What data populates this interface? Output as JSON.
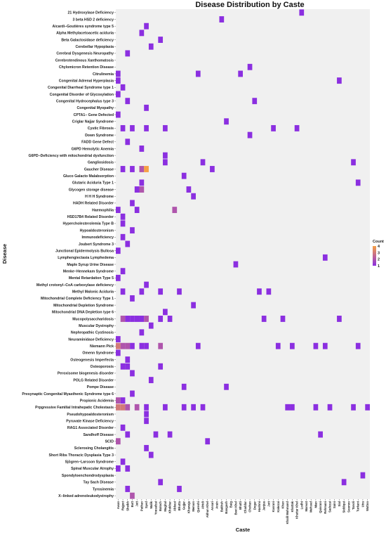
{
  "chart_data": {
    "type": "heatmap",
    "title": "Disease Distribution by Caste",
    "xlabel": "Caste",
    "ylabel": "Disease",
    "legend": {
      "title": "Count",
      "ticks": [
        1,
        2,
        3,
        4
      ],
      "position": "right",
      "low_color": "#8b2fe0",
      "high_color": "#f6a045"
    },
    "panel_color": "#f0f0f0",
    "grid": false,
    "diseases": [
      "21 Hydroxylase Deficiency",
      "3 beta HSD 2 deficiency",
      "Aicardi−Goutières syndrome type 5",
      "Alpha Methylacetoacetic aciduria",
      "Beta Galactosidase deficiency",
      "Cerebellar Hypoplasia",
      "Cerebral Dysgenesis Neuropathy",
      "Cerebrotendinous Xanthomatosis",
      "Chylomicron Retention Disease",
      "Citrulinemia",
      "Congenital Adrenal Hyperplasia",
      "Congenital Diarrheal Syndrome type 1",
      "Congenital Disorder of Glycosylation",
      "Congenital Hydrocephalus type 3",
      "Congenital Myopathy",
      "CPTA1− Gene Defected",
      "Criglar Najjar Syndrome",
      "Cystic Fibrosis",
      "Down Syndrome",
      "FADD Gene Defect",
      "G6PD Hemolytic Anemia",
      "G6PD−Deficiency with mitochondrial dysfunction",
      "Gangliosidosis",
      "Gaucher Disease",
      "Gluco Galacto Malabsorption",
      "Glutaric Aciduria Type 1",
      "Glycogen storage disease",
      "H H H Syndrome",
      "HADH Related Disorder",
      "Haemophilia",
      "HSD17B4 Related Disorder",
      "Hypercholesterolemia Type B",
      "Hypoaldosteronism",
      "Immunodeficiency",
      "Joubert Syndrome 3",
      "Junctional Epidermolysis Bullosa",
      "Lymphengiectasia Lymphedema",
      "Maple Syrup Urine Disease",
      "Menke−Hennekam Syndrome",
      "Mental Retardation Type 5",
      "Methyl crotonyl−CoA carboxylase deficiency",
      "Methyl Malonic Aciduria",
      "Mitochondrial Complete Deficiency Type 1",
      "Mitochondrial Depletion Syndrome",
      "Mitochondrial DNA Depletion type 6",
      "Mucopolysaccharidosis",
      "Muscular Dystrophy",
      "Nephropathic Cystinosis",
      "Neuraminidase Deficiency",
      "Niemann Pick",
      "Omenn Syndrome",
      "Osteogenesis Imperfecta",
      "Osteoporosis",
      "Peroxisome biogenesis disorder",
      "POLG Related Disorder",
      "Pompe Disease",
      "Presynaptic Congenital Myasthenic Syndrome type 6",
      "Propionic Acidemia",
      "Prpgressive Familial Intrahepatic Cholestasis",
      "Pseudohypoaldosteronism",
      "Pyruvate Kinase Deficiency",
      "RAG1 Associated Disorder",
      "Sandhoff Disease",
      "SCID",
      "Sclerosing Cholangitis",
      "Short Ribs Thoracic Dysplasia Type 3",
      "Sjögren−Larsson Syndrome",
      "Spinal Muscular Atrophy",
      "Spondyloenchondrodysplasia",
      "Tay Sach Disease",
      "Tyrosinemia",
      "X−linked adrenoleukodystrophy"
    ],
    "castes": [
      "Awan",
      "Rajput",
      "Sheikh",
      "Butt",
      "Jatt",
      "Pathan",
      "Syed",
      "Malik",
      "Yousafzai",
      "Baloch",
      "Mughal",
      "Khokhar",
      "Abbasi",
      "Bhutta",
      "Gujjar",
      "Khawaja",
      "Memon",
      "Qureshi",
      "Afridi",
      "Akhun Khel",
      "Ansari",
      "Arain",
      "Bakhsh",
      "Bangash",
      "Baig",
      "Beet Khel",
      "Bhatti",
      "Chaddar",
      "Chohan",
      "Dogar",
      "Hashmi",
      "Janjua",
      "Jutt",
      "Kasrani",
      "Kakezai",
      "Khan",
      "Khalil Mohmand",
      "Khattak",
      "Khattar Khel",
      "Lodhi",
      "Marwat",
      "Mehsud",
      "Mian",
      "Qaisrani",
      "Rehmani",
      "Sadozai",
      "Saini",
      "Sial",
      "Siddiqui",
      "Soomro",
      "Tanoli",
      "Turkani",
      "Utra",
      "Wattoo"
    ],
    "values": [
      {
        "disease": "21 Hydroxylase Deficiency",
        "caste": "Lodhi",
        "count": 1
      },
      {
        "disease": "3 beta HSD 2 deficiency",
        "caste": "Bakhsh",
        "count": 1
      },
      {
        "disease": "Aicardi−Goutières syndrome type 5",
        "caste": "Syed",
        "count": 1
      },
      {
        "disease": "Alpha Methylacetoacetic aciduria",
        "caste": "Pathan",
        "count": 1
      },
      {
        "disease": "Beta Galactosidase deficiency",
        "caste": "Baloch",
        "count": 1
      },
      {
        "disease": "Cerebellar Hypoplasia",
        "caste": "Malik",
        "count": 1
      },
      {
        "disease": "Cerebral Dysgenesis Neuropathy",
        "caste": "Sheikh",
        "count": 1
      },
      {
        "disease": "Chylomicron Retention Disease",
        "caste": "Chohan",
        "count": 1
      },
      {
        "disease": "Citrulinemia",
        "caste": "Awan",
        "count": 1
      },
      {
        "disease": "Citrulinemia",
        "caste": "Qureshi",
        "count": 1
      },
      {
        "disease": "Citrulinemia",
        "caste": "Bhatti",
        "count": 1
      },
      {
        "disease": "Congenital Adrenal Hyperplasia",
        "caste": "Awan",
        "count": 1
      },
      {
        "disease": "Congenital Adrenal Hyperplasia",
        "caste": "Sial",
        "count": 1
      },
      {
        "disease": "Congenital Diarrheal Syndrome type 1",
        "caste": "Rajput",
        "count": 1
      },
      {
        "disease": "Congenital Disorder of Glycosylation",
        "caste": "Awan",
        "count": 1
      },
      {
        "disease": "Congenital Hydrocephalus type 3",
        "caste": "Sheikh",
        "count": 1
      },
      {
        "disease": "Congenital Hydrocephalus type 3",
        "caste": "Dogar",
        "count": 1
      },
      {
        "disease": "Congenital Myopathy",
        "caste": "Syed",
        "count": 1
      },
      {
        "disease": "CPTA1− Gene Defected",
        "caste": "Awan",
        "count": 1
      },
      {
        "disease": "Criglar Najjar Syndrome",
        "caste": "Bangash",
        "count": 1
      },
      {
        "disease": "Cystic Fibrosis",
        "caste": "Rajput",
        "count": 1
      },
      {
        "disease": "Cystic Fibrosis",
        "caste": "Butt",
        "count": 1
      },
      {
        "disease": "Cystic Fibrosis",
        "caste": "Syed",
        "count": 1
      },
      {
        "disease": "Cystic Fibrosis",
        "caste": "Mughal",
        "count": 1
      },
      {
        "disease": "Cystic Fibrosis",
        "caste": "Kasrani",
        "count": 1
      },
      {
        "disease": "Cystic Fibrosis",
        "caste": "Khattar Khel",
        "count": 1
      },
      {
        "disease": "Down Syndrome",
        "caste": "Chohan",
        "count": 1
      },
      {
        "disease": "FADD Gene Defect",
        "caste": "Sheikh",
        "count": 1
      },
      {
        "disease": "G6PD Hemolytic Anemia",
        "caste": "Pathan",
        "count": 1
      },
      {
        "disease": "G6PD−Deficiency with mitochondrial dysfunction",
        "caste": "Mughal",
        "count": 1
      },
      {
        "disease": "Gangliosidosis",
        "caste": "Mughal",
        "count": 1
      },
      {
        "disease": "Gangliosidosis",
        "caste": "Afridi",
        "count": 1
      },
      {
        "disease": "Gangliosidosis",
        "caste": "Tanoli",
        "count": 1
      },
      {
        "disease": "Gaucher Disease",
        "caste": "Rajput",
        "count": 1
      },
      {
        "disease": "Gaucher Disease",
        "caste": "Butt",
        "count": 1
      },
      {
        "disease": "Gaucher Disease",
        "caste": "Pathan",
        "count": 2
      },
      {
        "disease": "Gaucher Disease",
        "caste": "Syed",
        "count": 4
      },
      {
        "disease": "Gaucher Disease",
        "caste": "Ansari",
        "count": 1
      },
      {
        "disease": "Gluco Galacto Malabsorption",
        "caste": "Gujjar",
        "count": 1
      },
      {
        "disease": "Glutaric Aciduria Type 1",
        "caste": "Pathan",
        "count": 1
      },
      {
        "disease": "Glutaric Aciduria Type 1",
        "caste": "Turkani",
        "count": 1
      },
      {
        "disease": "Glycogen storage disease",
        "caste": "Jatt",
        "count": 1
      },
      {
        "disease": "Glycogen storage disease",
        "caste": "Pathan",
        "count": 2
      },
      {
        "disease": "Glycogen storage disease",
        "caste": "Khawaja",
        "count": 1
      },
      {
        "disease": "H H H Syndrome",
        "caste": "Memon",
        "count": 1
      },
      {
        "disease": "HADH Related Disorder",
        "caste": "Butt",
        "count": 1
      },
      {
        "disease": "Haemophilia",
        "caste": "Awan",
        "count": 1
      },
      {
        "disease": "Haemophilia",
        "caste": "Jatt",
        "count": 1
      },
      {
        "disease": "Haemophilia",
        "caste": "Abbasi",
        "count": 2
      },
      {
        "disease": "HSD17B4 Related Disorder",
        "caste": "Rajput",
        "count": 1
      },
      {
        "disease": "Hypercholesterolemia Type B",
        "caste": "Rajput",
        "count": 1
      },
      {
        "disease": "Hypoaldosteronism",
        "caste": "Butt",
        "count": 1
      },
      {
        "disease": "Immunodeficiency",
        "caste": "Rajput",
        "count": 1
      },
      {
        "disease": "Joubert Syndrome 3",
        "caste": "Sheikh",
        "count": 1
      },
      {
        "disease": "Junctional Epidermolysis Bullosa",
        "caste": "Awan",
        "count": 1
      },
      {
        "disease": "Lymphengiectasia Lymphedema",
        "caste": "Rehmani",
        "count": 1
      },
      {
        "disease": "Maple Syrup Urine Disease",
        "caste": "Beet Khel",
        "count": 1
      },
      {
        "disease": "Menke−Hennekam Syndrome",
        "caste": "Rajput",
        "count": 1
      },
      {
        "disease": "Mental Retardation Type 5",
        "caste": "Awan",
        "count": 1
      },
      {
        "disease": "Methyl crotonyl−CoA carboxylase deficiency",
        "caste": "Syed",
        "count": 1
      },
      {
        "disease": "Methyl Malonic Aciduria",
        "caste": "Rajput",
        "count": 1
      },
      {
        "disease": "Methyl Malonic Aciduria",
        "caste": "Pathan",
        "count": 1
      },
      {
        "disease": "Methyl Malonic Aciduria",
        "caste": "Baloch",
        "count": 1
      },
      {
        "disease": "Methyl Malonic Aciduria",
        "caste": "Bhutta",
        "count": 1
      },
      {
        "disease": "Methyl Malonic Aciduria",
        "caste": "Hashmi",
        "count": 1
      },
      {
        "disease": "Methyl Malonic Aciduria",
        "caste": "Jutt",
        "count": 1
      },
      {
        "disease": "Mitochondrial Complete Deficiency Type 1",
        "caste": "Butt",
        "count": 1
      },
      {
        "disease": "Mitochondrial Depletion Syndrome",
        "caste": "Memon",
        "count": 1
      },
      {
        "disease": "Mitochondrial DNA Depletion type 6",
        "caste": "Mughal",
        "count": 1
      },
      {
        "disease": "Mucopolysaccharidosis",
        "caste": "Rajput",
        "count": 2
      },
      {
        "disease": "Mucopolysaccharidosis",
        "caste": "Sheikh",
        "count": 1
      },
      {
        "disease": "Mucopolysaccharidosis",
        "caste": "Butt",
        "count": 1
      },
      {
        "disease": "Mucopolysaccharidosis",
        "caste": "Jatt",
        "count": 1
      },
      {
        "disease": "Mucopolysaccharidosis",
        "caste": "Pathan",
        "count": 1
      },
      {
        "disease": "Mucopolysaccharidosis",
        "caste": "Syed",
        "count": 2
      },
      {
        "disease": "Mucopolysaccharidosis",
        "caste": "Baloch",
        "count": 1
      },
      {
        "disease": "Mucopolysaccharidosis",
        "caste": "Khokhar",
        "count": 1
      },
      {
        "disease": "Mucopolysaccharidosis",
        "caste": "Janjua",
        "count": 1
      },
      {
        "disease": "Mucopolysaccharidosis",
        "caste": "Khan",
        "count": 1
      },
      {
        "disease": "Mucopolysaccharidosis",
        "caste": "Sial",
        "count": 1
      },
      {
        "disease": "Muscular Dystrophy",
        "caste": "Malik",
        "count": 1
      },
      {
        "disease": "Nephropathic Cystinosis",
        "caste": "Pathan",
        "count": 1
      },
      {
        "disease": "Neuraminidase Deficiency",
        "caste": "Awan",
        "count": 1
      },
      {
        "disease": "Niemann Pick",
        "caste": "Awan",
        "count": 3
      },
      {
        "disease": "Niemann Pick",
        "caste": "Rajput",
        "count": 2
      },
      {
        "disease": "Niemann Pick",
        "caste": "Sheikh",
        "count": 2
      },
      {
        "disease": "Niemann Pick",
        "caste": "Butt",
        "count": 1
      },
      {
        "disease": "Niemann Pick",
        "caste": "Pathan",
        "count": 1
      },
      {
        "disease": "Niemann Pick",
        "caste": "Syed",
        "count": 1
      },
      {
        "disease": "Niemann Pick",
        "caste": "Baloch",
        "count": 2
      },
      {
        "disease": "Niemann Pick",
        "caste": "Qureshi",
        "count": 1
      },
      {
        "disease": "Niemann Pick",
        "caste": "Kakezai",
        "count": 1
      },
      {
        "disease": "Niemann Pick",
        "caste": "Khattak",
        "count": 1
      },
      {
        "disease": "Niemann Pick",
        "caste": "Mian",
        "count": 1
      },
      {
        "disease": "Niemann Pick",
        "caste": "Rehmani",
        "count": 1
      },
      {
        "disease": "Niemann Pick",
        "caste": "Turkani",
        "count": 1
      },
      {
        "disease": "Omenn Syndrome",
        "caste": "Awan",
        "count": 1
      },
      {
        "disease": "Osteogenesis Imperfecta",
        "caste": "Sheikh",
        "count": 1
      },
      {
        "disease": "Osteoporosis",
        "caste": "Rajput",
        "count": 1
      },
      {
        "disease": "Osteoporosis",
        "caste": "Sheikh",
        "count": 1
      },
      {
        "disease": "Osteoporosis",
        "caste": "Baloch",
        "count": 1
      },
      {
        "disease": "Peroxisome biogenesis disorder",
        "caste": "Butt",
        "count": 1
      },
      {
        "disease": "POLG Related Disorder",
        "caste": "Malik",
        "count": 1
      },
      {
        "disease": "Pompe Disease",
        "caste": "Gujjar",
        "count": 1
      },
      {
        "disease": "Pompe Disease",
        "caste": "Bangash",
        "count": 1
      },
      {
        "disease": "Presynaptic Congenital Myasthenic Syndrome type 6",
        "caste": "Butt",
        "count": 1
      },
      {
        "disease": "Propionic Acidemia",
        "caste": "Awan",
        "count": 2
      },
      {
        "disease": "Propionic Acidemia",
        "caste": "Rajput",
        "count": 1
      },
      {
        "disease": "Prpgressive Familial Intrahepatic Cholestasis",
        "caste": "Awan",
        "count": 3
      },
      {
        "disease": "Prpgressive Familial Intrahepatic Cholestasis",
        "caste": "Rajput",
        "count": 3
      },
      {
        "disease": "Prpgressive Familial Intrahepatic Cholestasis",
        "caste": "Sheikh",
        "count": 2
      },
      {
        "disease": "Prpgressive Familial Intrahepatic Cholestasis",
        "caste": "Jatt",
        "count": 2
      },
      {
        "disease": "Prpgressive Familial Intrahepatic Cholestasis",
        "caste": "Syed",
        "count": 1
      },
      {
        "disease": "Prpgressive Familial Intrahepatic Cholestasis",
        "caste": "Mughal",
        "count": 1
      },
      {
        "disease": "Prpgressive Familial Intrahepatic Cholestasis",
        "caste": "Gujjar",
        "count": 1
      },
      {
        "disease": "Prpgressive Familial Intrahepatic Cholestasis",
        "caste": "Memon",
        "count": 1
      },
      {
        "disease": "Prpgressive Familial Intrahepatic Cholestasis",
        "caste": "Afridi",
        "count": 1
      },
      {
        "disease": "Prpgressive Familial Intrahepatic Cholestasis",
        "caste": "Khalil Mohmand",
        "count": 1
      },
      {
        "disease": "Prpgressive Familial Intrahepatic Cholestasis",
        "caste": "Khattak",
        "count": 1
      },
      {
        "disease": "Prpgressive Familial Intrahepatic Cholestasis",
        "caste": "Mian",
        "count": 1
      },
      {
        "disease": "Prpgressive Familial Intrahepatic Cholestasis",
        "caste": "Sadozai",
        "count": 1
      },
      {
        "disease": "Prpgressive Familial Intrahepatic Cholestasis",
        "caste": "Tanoli",
        "count": 1
      },
      {
        "disease": "Prpgressive Familial Intrahepatic Cholestasis",
        "caste": "Wattoo",
        "count": 1
      },
      {
        "disease": "Pseudohypoaldosteronism",
        "caste": "Syed",
        "count": 1
      },
      {
        "disease": "Pyruvate Kinase Deficiency",
        "caste": "Syed",
        "count": 1
      },
      {
        "disease": "RAG1 Associated Disorder",
        "caste": "Rajput",
        "count": 1
      },
      {
        "disease": "Sandhoff Disease",
        "caste": "Sheikh",
        "count": 1
      },
      {
        "disease": "Sandhoff Disease",
        "caste": "Yousafzai",
        "count": 1
      },
      {
        "disease": "Sandhoff Disease",
        "caste": "Khokhar",
        "count": 1
      },
      {
        "disease": "Sandhoff Disease",
        "caste": "Qaisrani",
        "count": 1
      },
      {
        "disease": "SCID",
        "caste": "Awan",
        "count": 2
      },
      {
        "disease": "SCID",
        "caste": "Akhun Khel",
        "count": 1
      },
      {
        "disease": "Sclerosing Cholangitis",
        "caste": "Syed",
        "count": 1
      },
      {
        "disease": "Short Ribs Thoracic Dysplasia Type 3",
        "caste": "Malik",
        "count": 1
      },
      {
        "disease": "Sjögren−Larsson Syndrome",
        "caste": "Rajput",
        "count": 1
      },
      {
        "disease": "Spinal Muscular Atrophy",
        "caste": "Awan",
        "count": 1
      },
      {
        "disease": "Spinal Muscular Atrophy",
        "caste": "Sheikh",
        "count": 1
      },
      {
        "disease": "Spondyloenchondrodysplasia",
        "caste": "Utra",
        "count": 1
      },
      {
        "disease": "Tay Sach Disease",
        "caste": "Baloch",
        "count": 1
      },
      {
        "disease": "Tay Sach Disease",
        "caste": "Siddiqui",
        "count": 1
      },
      {
        "disease": "Tyrosinemia",
        "caste": "Sheikh",
        "count": 1
      },
      {
        "disease": "Tyrosinemia",
        "caste": "Bhutta",
        "count": 1
      },
      {
        "disease": "X−linked adrenoleukodystrophy",
        "caste": "Butt",
        "count": 2
      }
    ]
  }
}
